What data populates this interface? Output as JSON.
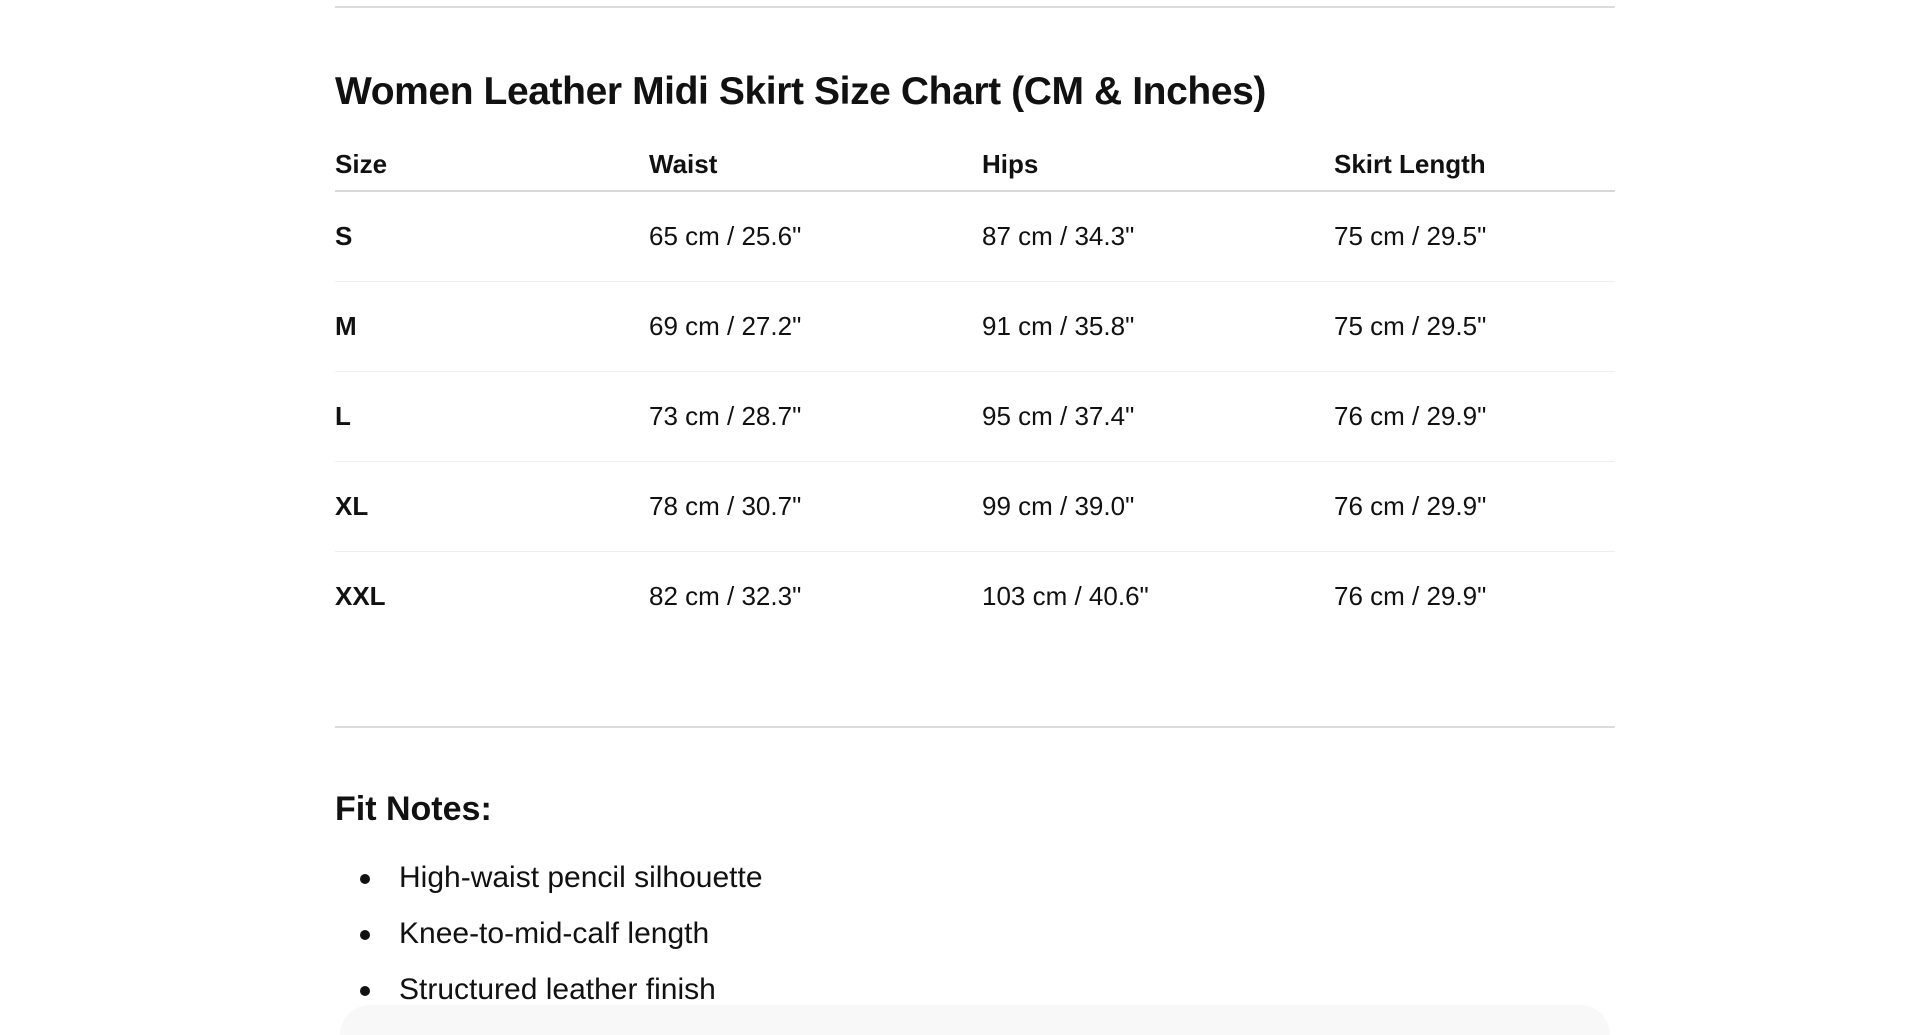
{
  "size_chart": {
    "title": "Women Leather Midi Skirt Size Chart (CM & Inches)",
    "columns": [
      "Size",
      "Waist",
      "Hips",
      "Skirt Length"
    ],
    "rows": [
      [
        "S",
        "65 cm / 25.6\"",
        "87 cm / 34.3\"",
        "75 cm / 29.5\""
      ],
      [
        "M",
        "69 cm / 27.2\"",
        "91 cm / 35.8\"",
        "75 cm / 29.5\""
      ],
      [
        "L",
        "73 cm / 28.7\"",
        "95 cm / 37.4\"",
        "76 cm / 29.9\""
      ],
      [
        "XL",
        "78 cm / 30.7\"",
        "99 cm / 39.0\"",
        "76 cm / 29.9\""
      ],
      [
        "XXL",
        "82 cm / 32.3\"",
        "103 cm / 40.6\"",
        "76 cm / 29.9\""
      ]
    ]
  },
  "fit_notes": {
    "title": "Fit Notes:",
    "items": [
      "High-waist pencil silhouette",
      "Knee-to-mid-calf length",
      "Structured leather finish"
    ]
  }
}
